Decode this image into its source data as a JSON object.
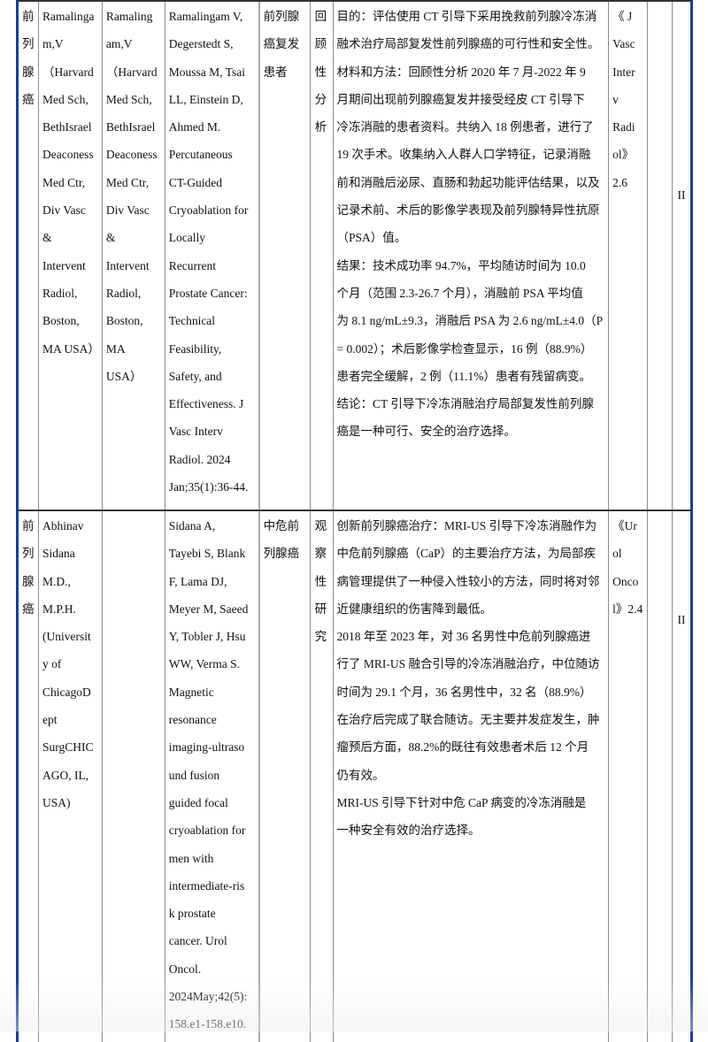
{
  "rows": [
    {
      "category": "前\n列\n腺\n癌",
      "author": "Ramalinga\nm,V\n（Harvard\nMed Sch,\nBethIsrael\nDeaconess\nMed Ctr,\nDiv Vasc\n&\nIntervent\nRadiol,\nBoston,\nMA USA）",
      "corresponding_author": "Ramaling\nam,V\n（Harvard\nMed Sch,\nBethIsrael\nDeaconess\nMed Ctr,\nDiv Vasc\n&\nIntervent\nRadiol,\nBoston,\nMA\nUSA）",
      "citation": "Ramalingam V,\nDegerstedt S,\nMoussa M, Tsai\nLL, Einstein D,\nAhmed M.\nPercutaneous\nCT-Guided\nCryoablation for\nLocally\nRecurrent\nProstate Cancer:\nTechnical\nFeasibility,\nSafety, and\nEffectiveness. J\nVasc Interv\nRadiol. 2024\nJan;35(1):36-44.",
      "population": "前列腺\n癌复发\n患者",
      "study_type": "回\n顾\n性\n分\n析",
      "summary": "目的：评估使用 CT 引导下采用挽救前列腺冷冻消\n融术治疗局部复发性前列腺癌的可行性和安全性。\n材料和方法：回顾性分析 2020 年 7 月-2022 年 9\n月期间出现前列腺癌复发并接受经皮 CT 引导下\n冷冻消融的患者资料。共纳入 18 例患者，进行了\n19 次手术。收集纳入人群人口学特征，记录消融\n前和消融后泌尿、直肠和勃起功能评估结果，以及\n记录术前、术后的影像学表现及前列腺特异性抗原\n（PSA）值。\n结果：技术成功率 94.7%，平均随访时间为 10.0\n个月（范围 2.3-26.7 个月），消融前 PSA 平均值\n为 8.1 ng/mL±9.3，消融后 PSA 为 2.6 ng/mL±4.0（P\n= 0.002）；术后影像学检查显示，16 例（88.9%）\n患者完全缓解，2 例（11.1%）患者有残留病变。\n结论：CT 引导下冷冻消融治疗局部复发性前列腺\n癌是一种可行、安全的治疗选择。",
      "journal": "《 J\nVasc\nInter\nv\nRadi\nol》\n2.6",
      "col9": "",
      "level": "II"
    },
    {
      "category": "前\n列\n腺\n癌",
      "author": "Abhinav\nSidana\nM.D.,\nM.P.H.\n(Universit\ny of\nChicagoD\nept\nSurgCHIC\nAGO, IL,\nUSA)",
      "corresponding_author": "",
      "citation": "Sidana A,\nTayebi S, Blank\nF, Lama DJ,\nMeyer M, Saeed\nY, Tobler J, Hsu\nWW, Verma S.\nMagnetic\nresonance\nimaging-ultraso\nund fusion\nguided focal\ncryoablation for\nmen with\nintermediate-ris\nk prostate\ncancer. Urol\nOncol.\n2024May;42(5):\n158.e1-158.e10.",
      "population": "中危前\n列腺癌",
      "study_type": "观\n察\n性\n研\n究",
      "summary": "创新前列腺癌治疗：MRI-US 引导下冷冻消融作为\n中危前列腺癌（CaP）的主要治疗方法，为局部疾\n病管理提供了一种侵入性较小的方法，同时将对邻\n近健康组织的伤害降到最低。\n2018 年至 2023 年，对 36 名男性中危前列腺癌进\n行了 MRI-US 融合引导的冷冻消融治疗，中位随访\n时间为 29.1 个月，36 名男性中，32 名（88.9%）\n在治疗后完成了联合随访。无主要并发症发生，肿\n瘤预后方面，88.2%的既往有效患者术后 12 个月\n仍有效。\nMRI-US 引导下针对中危 CaP 病变的冷冻消融是\n一种安全有效的治疗选择。",
      "journal": "《Ur\nol\nOnco\nl》2.4",
      "col9": "",
      "level": "II"
    }
  ]
}
